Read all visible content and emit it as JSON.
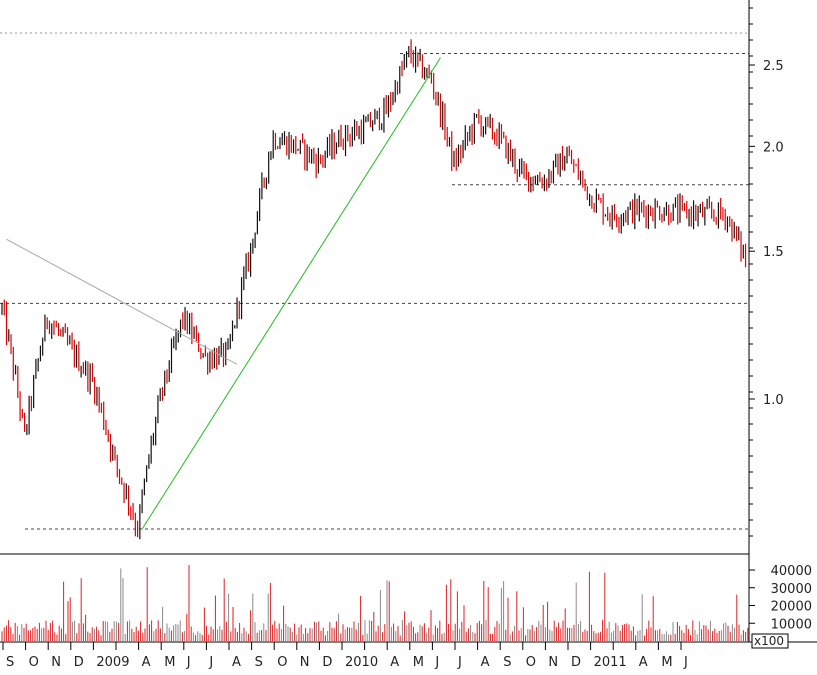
{
  "chart_data": [
    {
      "type": "candlestick",
      "y_scale": "log",
      "ylim": [
        0.65,
        2.85
      ],
      "y_ticks": [
        "2.5",
        "2.0",
        "1.5",
        "1.0"
      ],
      "x_month_labels": [
        "S",
        "O",
        "N",
        "D",
        "2009",
        "",
        "A",
        "M",
        "J",
        "J",
        "A",
        "S",
        "O",
        "N",
        "D",
        "2010",
        "",
        "A",
        "M",
        "J",
        "J",
        "A",
        "S",
        "O",
        "N",
        "D",
        "2011",
        "",
        "A",
        "M",
        "J"
      ],
      "x_range": [
        "2008-09",
        "2011-06"
      ],
      "approx_close_path": [
        {
          "date": "2008-09",
          "value": 1.28
        },
        {
          "date": "2008-10",
          "value": 0.9
        },
        {
          "date": "2008-11",
          "value": 1.25
        },
        {
          "date": "2008-12",
          "value": 1.15
        },
        {
          "date": "2009-01",
          "value": 1.05
        },
        {
          "date": "2009-02",
          "value": 0.84
        },
        {
          "date": "2009-03",
          "value": 0.7
        },
        {
          "date": "2009-04",
          "value": 1.0
        },
        {
          "date": "2009-05",
          "value": 1.25
        },
        {
          "date": "2009-06",
          "value": 1.12
        },
        {
          "date": "2009-07",
          "value": 1.13
        },
        {
          "date": "2009-08",
          "value": 1.5
        },
        {
          "date": "2009-09",
          "value": 2.05
        },
        {
          "date": "2009-10",
          "value": 2.0
        },
        {
          "date": "2009-11",
          "value": 1.92
        },
        {
          "date": "2009-12",
          "value": 2.05
        },
        {
          "date": "2010-01",
          "value": 2.1
        },
        {
          "date": "2010-02",
          "value": 2.2
        },
        {
          "date": "2010-03",
          "value": 2.58
        },
        {
          "date": "2010-04",
          "value": 2.4
        },
        {
          "date": "2010-05",
          "value": 1.9
        },
        {
          "date": "2010-06",
          "value": 2.15
        },
        {
          "date": "2010-07",
          "value": 2.05
        },
        {
          "date": "2010-08",
          "value": 1.85
        },
        {
          "date": "2010-09",
          "value": 1.82
        },
        {
          "date": "2010-10",
          "value": 1.95
        },
        {
          "date": "2010-11",
          "value": 1.75
        },
        {
          "date": "2010-12",
          "value": 1.65
        },
        {
          "date": "2011-01",
          "value": 1.68
        },
        {
          "date": "2011-02",
          "value": 1.68
        },
        {
          "date": "2011-03",
          "value": 1.67
        },
        {
          "date": "2011-04",
          "value": 1.66
        },
        {
          "date": "2011-05",
          "value": 1.66
        },
        {
          "date": "2011-06",
          "value": 1.45
        }
      ],
      "horizontal_levels": [
        2.58,
        1.8,
        1.3,
        0.7
      ],
      "trendlines": [
        {
          "color": "#22bb22",
          "from": {
            "date": "2009-03",
            "value": 0.7
          },
          "to": {
            "date": "2010-04",
            "value": 2.55
          }
        },
        {
          "color": "#aaaaaa",
          "from": {
            "date": "2008-09",
            "value": 1.55
          },
          "to": {
            "date": "2009-07",
            "value": 1.1
          }
        }
      ],
      "bar_colors": {
        "down": "#dd0000",
        "up": "#111111"
      },
      "grid": false
    },
    {
      "type": "bar",
      "ylim": [
        0,
        45000
      ],
      "y_ticks": [
        "40000",
        "30000",
        "20000",
        "10000"
      ],
      "multiplier_label": "x100",
      "volume_colors": [
        "#dd2222",
        "#888888"
      ],
      "approx_volume_level": "spikes up to about 45000"
    }
  ]
}
